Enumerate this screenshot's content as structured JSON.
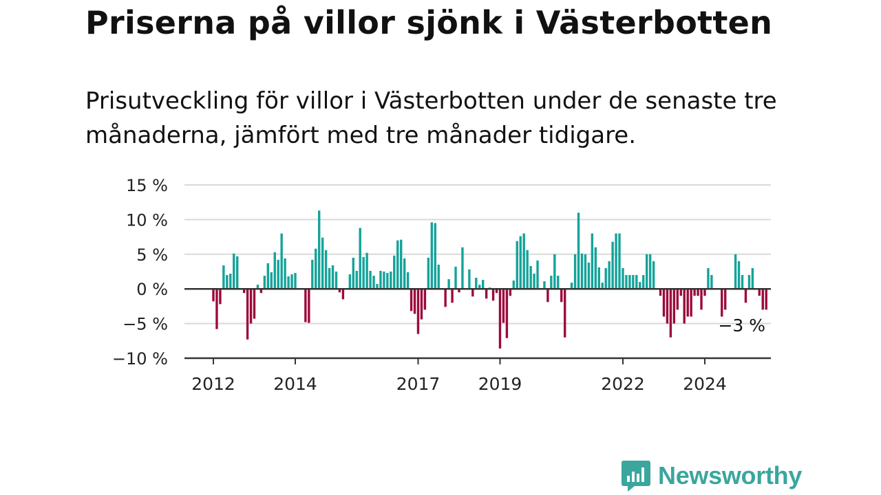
{
  "title": "Priserna på villor sjönk i Västerbotten",
  "subtitle": "Prisutveckling för villor i Västerbotten under de senaste tre månaderna, jämfört med tre månader tidigare.",
  "logo": {
    "text": "Newsworthy",
    "color": "#3aa69e",
    "icon": "bar-chart-speech-bubble-icon"
  },
  "colors": {
    "positive": "#14a39a",
    "negative": "#9b0a3a",
    "grid": "#d9d9d9",
    "zero_line": "#333333"
  },
  "chart_data": {
    "type": "bar",
    "title": "",
    "xlabel": "",
    "ylabel": "",
    "ylim": [
      -10,
      15
    ],
    "y_ticks": [
      "15 %",
      "10 %",
      "5 %",
      "0 %",
      "−5 %",
      "−10 %"
    ],
    "y_tick_values": [
      15,
      10,
      5,
      0,
      -5,
      -10
    ],
    "x_ticks": [
      "2012",
      "2014",
      "2017",
      "2019",
      "2022",
      "2024"
    ],
    "x_tick_values": [
      2012.0,
      2014.0,
      2017.0,
      2019.0,
      2022.0,
      2024.0
    ],
    "x_start": 2012.0,
    "x_step": 0.08333,
    "last_label": "−3 %",
    "grid": true,
    "values": [
      -1.8,
      -5.8,
      -2.2,
      3.4,
      2.0,
      2.2,
      5.1,
      4.7,
      0.0,
      -0.6,
      -7.3,
      -5.0,
      -4.3,
      0.6,
      -0.6,
      1.9,
      3.7,
      2.4,
      5.3,
      4.2,
      8.0,
      4.4,
      1.8,
      2.1,
      2.3,
      0.0,
      0.0,
      -4.8,
      -4.9,
      4.2,
      5.8,
      11.3,
      7.4,
      5.6,
      3.0,
      3.4,
      2.5,
      -0.5,
      -1.5,
      0.0,
      2.1,
      4.5,
      2.6,
      8.8,
      4.6,
      5.2,
      2.6,
      1.9,
      0.7,
      2.6,
      2.5,
      2.3,
      2.5,
      4.8,
      7.0,
      7.1,
      4.4,
      2.4,
      -3.2,
      -3.6,
      -6.5,
      -4.4,
      -3.0,
      4.5,
      9.6,
      9.5,
      3.5,
      0.0,
      -2.6,
      1.4,
      -2.0,
      3.2,
      -0.5,
      6.0,
      0.0,
      2.8,
      -1.1,
      1.6,
      0.6,
      1.3,
      -1.4,
      0.2,
      -1.7,
      -0.6,
      -8.6,
      -4.9,
      -7.1,
      -1.0,
      1.2,
      6.9,
      7.6,
      8.0,
      5.6,
      3.3,
      2.2,
      4.1,
      0.0,
      1.1,
      -1.9,
      1.9,
      5.0,
      1.9,
      -1.9,
      -7.0,
      0.0,
      0.9,
      5.0,
      11.0,
      5.1,
      5.0,
      3.8,
      8.0,
      6.0,
      3.1,
      0.9,
      3.0,
      4.0,
      6.8,
      8.0,
      8.0,
      3.0,
      2.0,
      2.0,
      2.0,
      2.0,
      1.0,
      2.0,
      5.0,
      5.0,
      4.0,
      0.0,
      -1.0,
      -4.0,
      -5.0,
      -7.0,
      -5.0,
      -3.0,
      -1.0,
      -5.0,
      -4.0,
      -4.0,
      -1.0,
      -1.0,
      -3.0,
      -1.0,
      3.0,
      2.0,
      0.0,
      0.0,
      -4.0,
      -3.0,
      0.0,
      0.0,
      5.0,
      4.0,
      2.0,
      -2.0,
      2.0,
      3.0,
      0.0,
      -1.0,
      -3.0,
      -3.0
    ]
  }
}
